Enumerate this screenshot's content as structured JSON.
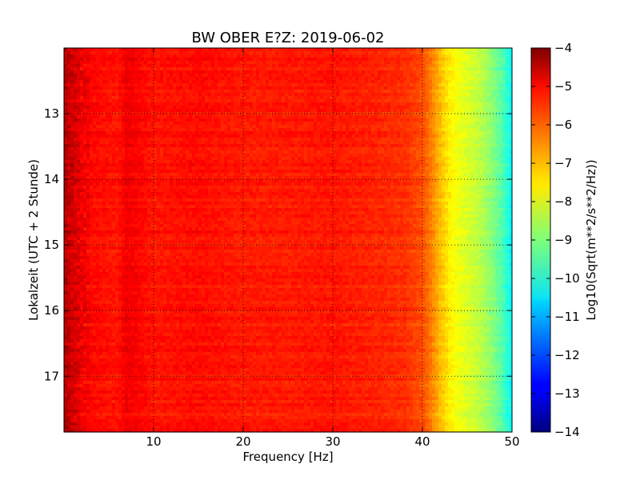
{
  "chart_data": {
    "type": "heatmap",
    "title": "BW OBER E?Z: 2019-06-02",
    "xlabel": "Frequency [Hz]",
    "ylabel": "Lokalzeit (UTC + 2 Stunde)",
    "colorbar_label": "Log10(Sqrt(m**2/s**2/Hz))",
    "xlim": [
      0,
      50
    ],
    "ylim": [
      17.85,
      12.0
    ],
    "x_ticks": [
      10,
      20,
      30,
      40,
      50
    ],
    "y_ticks": [
      13,
      14,
      15,
      16,
      17
    ],
    "color_range": [
      -14,
      -4
    ],
    "colorbar_ticks": [
      -4,
      -5,
      -6,
      -7,
      -8,
      -9,
      -10,
      -11,
      -12,
      -13,
      -14
    ],
    "colormap": "jet",
    "grid": true,
    "grid_style": "dotted",
    "frequency_profile": {
      "frequency_hz": [
        0,
        0.5,
        1,
        2,
        3,
        4,
        5,
        6,
        7,
        10,
        15,
        20,
        25,
        30,
        35,
        38,
        40,
        41,
        42,
        43,
        44,
        45,
        46,
        47,
        48,
        49,
        50
      ],
      "log10_amplitude": [
        -4.6,
        -4.8,
        -4.9,
        -5.2,
        -5.3,
        -5.35,
        -5.4,
        -5.45,
        -5.1,
        -5.45,
        -5.35,
        -5.5,
        -5.5,
        -5.45,
        -5.6,
        -5.7,
        -6.0,
        -6.5,
        -7.1,
        -7.6,
        -7.9,
        -8.1,
        -8.3,
        -8.6,
        -9.0,
        -9.5,
        -10.3
      ]
    }
  }
}
